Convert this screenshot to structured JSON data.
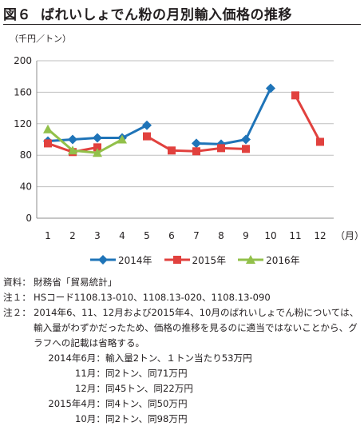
{
  "figure": {
    "number": "図６",
    "title": "ばれいしょでん粉の月別輸入価格の推移",
    "unit_label": "（千円／トン）"
  },
  "chart_data": {
    "type": "line",
    "x": [
      1,
      2,
      3,
      4,
      5,
      6,
      7,
      8,
      9,
      10,
      11,
      12
    ],
    "xlabel": "（月）",
    "ylabel": "（千円／トン）",
    "ylim": [
      0,
      200
    ],
    "yticks": [
      0,
      40,
      80,
      120,
      160,
      200
    ],
    "grid": true,
    "legend_position": "bottom",
    "series": [
      {
        "name": "2014年",
        "color": "#1f74b8",
        "marker": "diamond",
        "values": [
          98,
          100,
          102,
          102,
          118,
          null,
          95,
          94,
          100,
          165,
          null,
          null
        ]
      },
      {
        "name": "2015年",
        "color": "#e1413e",
        "marker": "square",
        "values": [
          95,
          84,
          90,
          null,
          104,
          86,
          85,
          89,
          88,
          null,
          156,
          97
        ]
      },
      {
        "name": "2016年",
        "color": "#92c04a",
        "marker": "triangle",
        "values": [
          113,
          86,
          83,
          100,
          null,
          null,
          null,
          null,
          null,
          null,
          null,
          null
        ]
      }
    ]
  },
  "notes": [
    {
      "label": "資料：",
      "text": "財務省「貿易統計」"
    },
    {
      "label": "注１：",
      "text": "HSコード1108.13-010、1108.13-020、1108.13-090"
    },
    {
      "label": "注２：",
      "text": "2014年6、11、12月および2015年4、10月のばれいしょでん粉については、輸入量がわずかだったため、価格の推移を見るのに適当ではないことから、グラフへの記載は省略する。"
    }
  ],
  "omitted": [
    {
      "key": "2014年6月：",
      "text": "輸入量2トン、１トン当たり53万円"
    },
    {
      "key": "11月：",
      "text": "同2トン、同71万円"
    },
    {
      "key": "12月：",
      "text": "同45トン、同22万円"
    },
    {
      "key": "2015年4月：",
      "text": "同4トン、同50万円"
    },
    {
      "key": "10月：",
      "text": "同2トン、同98万円"
    }
  ]
}
